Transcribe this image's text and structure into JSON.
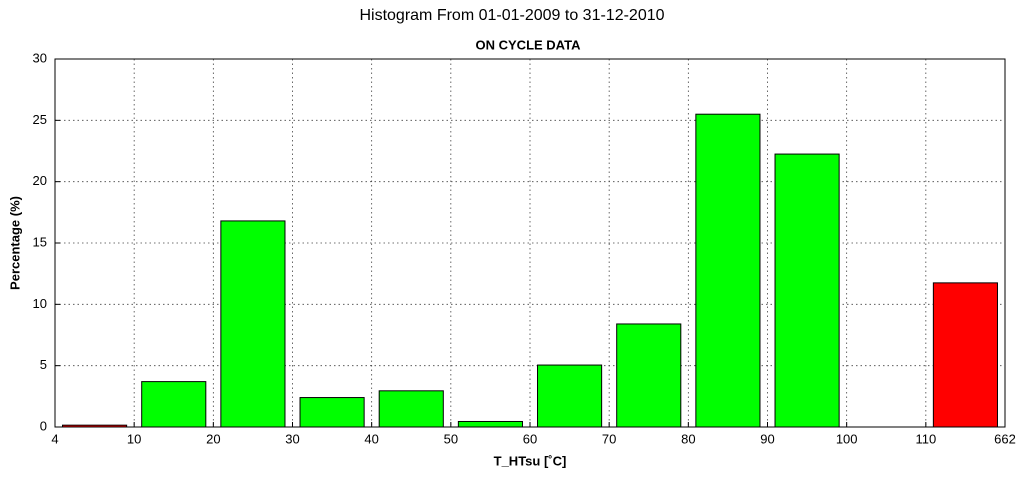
{
  "chart_data": {
    "type": "histogram",
    "title": "Histogram From 01-01-2009 to 31-12-2010",
    "subtitle": "ON CYCLE DATA",
    "x_label": "T_HTsu [˚C]",
    "y_label": "Percentage (%)",
    "bins": [
      4,
      10,
      20,
      30,
      40,
      50,
      60,
      70,
      80,
      90,
      100,
      110,
      662
    ],
    "values": [
      0.15,
      3.7,
      16.8,
      2.4,
      2.95,
      0.45,
      5.05,
      8.4,
      25.5,
      22.25,
      0,
      11.75
    ],
    "colors": [
      "#ff0000",
      "#00ff00",
      "#00ff00",
      "#00ff00",
      "#00ff00",
      "#00ff00",
      "#00ff00",
      "#00ff00",
      "#00ff00",
      "#00ff00",
      "#00ff00",
      "#ff0000"
    ],
    "ylim": [
      0,
      30
    ],
    "yticks": [
      0,
      5,
      10,
      15,
      20,
      25,
      30
    ],
    "grid": true
  }
}
